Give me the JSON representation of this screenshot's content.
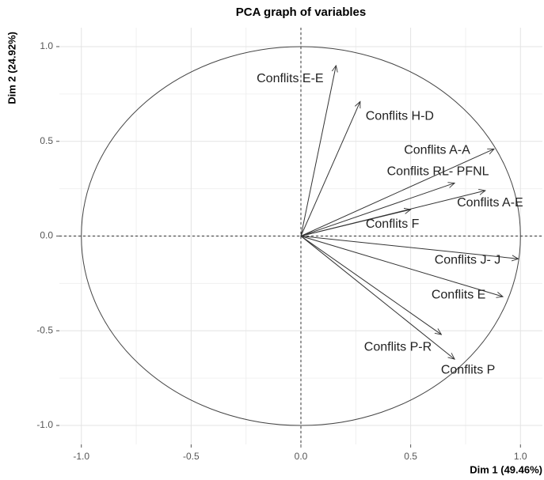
{
  "chart_data": {
    "type": "vectors",
    "title": "PCA graph of variables",
    "x_label": "Dim 1 (49.46%)",
    "y_label": "Dim 2 (24.92%)",
    "variables": [
      "Conflits E-E",
      "Conflits H-D",
      "Conflits A-A",
      "Conflits RL- PFNL",
      "Conflits A-E",
      "Conflits F",
      "Conflits J- J",
      "Conflits E",
      "Conflits P-R",
      "Conflits P"
    ],
    "x": [
      0.16,
      0.27,
      0.88,
      0.7,
      0.84,
      0.5,
      0.99,
      0.92,
      0.64,
      0.7
    ],
    "y": [
      0.9,
      0.71,
      0.46,
      0.28,
      0.24,
      0.14,
      -0.12,
      -0.32,
      -0.52,
      -0.65
    ],
    "xlim": [
      -1.1,
      1.1
    ],
    "ylim": [
      -1.1,
      1.1
    ],
    "xticks": [
      {
        "value": -1,
        "label": "-1.0"
      },
      {
        "value": -0.5,
        "label": "-0.5"
      },
      {
        "value": 0,
        "label": "0.0"
      },
      {
        "value": 0.5,
        "label": "0.5"
      },
      {
        "value": 1,
        "label": "1.0"
      }
    ],
    "yticks": [
      {
        "value": -1,
        "label": "-1.0"
      },
      {
        "value": -0.5,
        "label": "-0.5"
      },
      {
        "value": 0,
        "label": "0.0"
      },
      {
        "value": 0.5,
        "label": "0.5"
      },
      {
        "value": 1,
        "label": "1.0"
      }
    ],
    "grid": true,
    "color": "#333333"
  }
}
